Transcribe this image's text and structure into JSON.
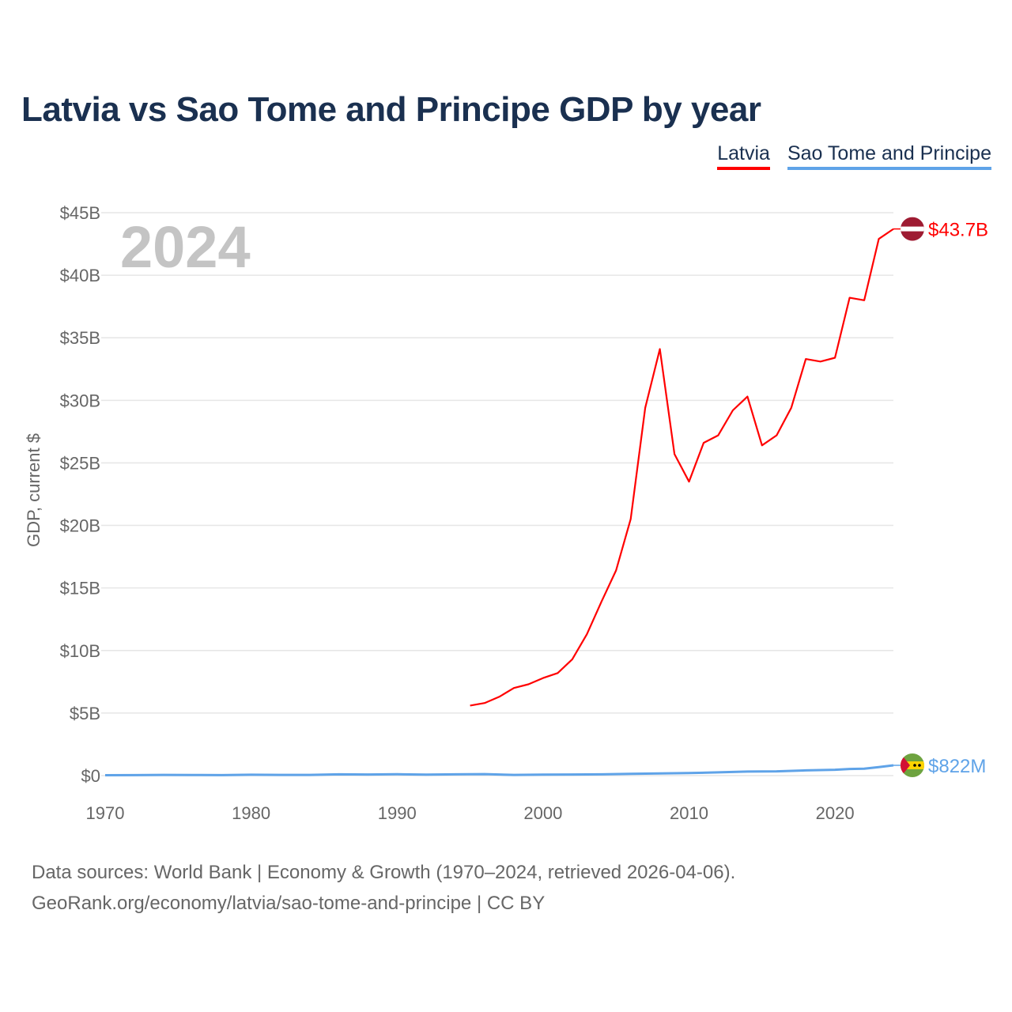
{
  "title": "Latvia vs Sao Tome and Principe GDP by year",
  "year_watermark": "2024",
  "source_line1": "Data sources: World Bank | Economy & Growth (1970–2024, retrieved 2026-04-06).",
  "source_line2": "GeoRank.org/economy/latvia/sao-tome-and-principe | CC BY",
  "chart_data": {
    "type": "line",
    "title": "Latvia vs Sao Tome and Principe GDP by year",
    "xlabel": "",
    "ylabel": "GDP, current $",
    "xlim": [
      1970,
      2024
    ],
    "ylim": [
      0,
      45
    ],
    "units": "billions USD",
    "grid": true,
    "legend_position": "top-right",
    "x_ticks": [
      1970,
      1980,
      1990,
      2000,
      2010,
      2020
    ],
    "x_tick_labels": [
      "1970",
      "1980",
      "1990",
      "2000",
      "2010",
      "2020"
    ],
    "y_ticks": [
      0,
      5,
      10,
      15,
      20,
      25,
      30,
      35,
      40,
      45
    ],
    "y_tick_labels": [
      "$0",
      "$5B",
      "$10B",
      "$15B",
      "$20B",
      "$25B",
      "$30B",
      "$35B",
      "$40B",
      "$45B"
    ],
    "series": [
      {
        "name": "Latvia",
        "color": "#ff0000",
        "end_label": "$43.7B",
        "x": [
          1995,
          1996,
          1997,
          1998,
          1999,
          2000,
          2001,
          2002,
          2003,
          2004,
          2005,
          2006,
          2007,
          2008,
          2009,
          2010,
          2011,
          2012,
          2013,
          2014,
          2015,
          2016,
          2017,
          2018,
          2019,
          2020,
          2021,
          2022,
          2023,
          2024
        ],
        "values": [
          5.6,
          5.8,
          6.3,
          7.0,
          7.3,
          7.8,
          8.2,
          9.3,
          11.3,
          13.9,
          16.4,
          20.5,
          29.4,
          34.1,
          25.7,
          23.5,
          26.6,
          27.2,
          29.2,
          30.3,
          26.4,
          27.2,
          29.4,
          33.3,
          33.1,
          33.4,
          38.2,
          38.0,
          42.9,
          43.7
        ]
      },
      {
        "name": "Sao Tome and Principe",
        "color": "#5fa3e8",
        "end_label": "$822M",
        "x": [
          1970,
          1972,
          1974,
          1976,
          1978,
          1980,
          1982,
          1984,
          1986,
          1988,
          1990,
          1992,
          1994,
          1996,
          1998,
          2000,
          2002,
          2004,
          2006,
          2008,
          2010,
          2012,
          2014,
          2016,
          2018,
          2020,
          2021,
          2022,
          2023,
          2024
        ],
        "values": [
          0.03,
          0.04,
          0.06,
          0.05,
          0.04,
          0.07,
          0.06,
          0.06,
          0.1,
          0.09,
          0.11,
          0.08,
          0.1,
          0.12,
          0.06,
          0.08,
          0.09,
          0.1,
          0.14,
          0.18,
          0.2,
          0.26,
          0.32,
          0.34,
          0.42,
          0.47,
          0.53,
          0.55,
          0.68,
          0.822
        ]
      }
    ]
  }
}
